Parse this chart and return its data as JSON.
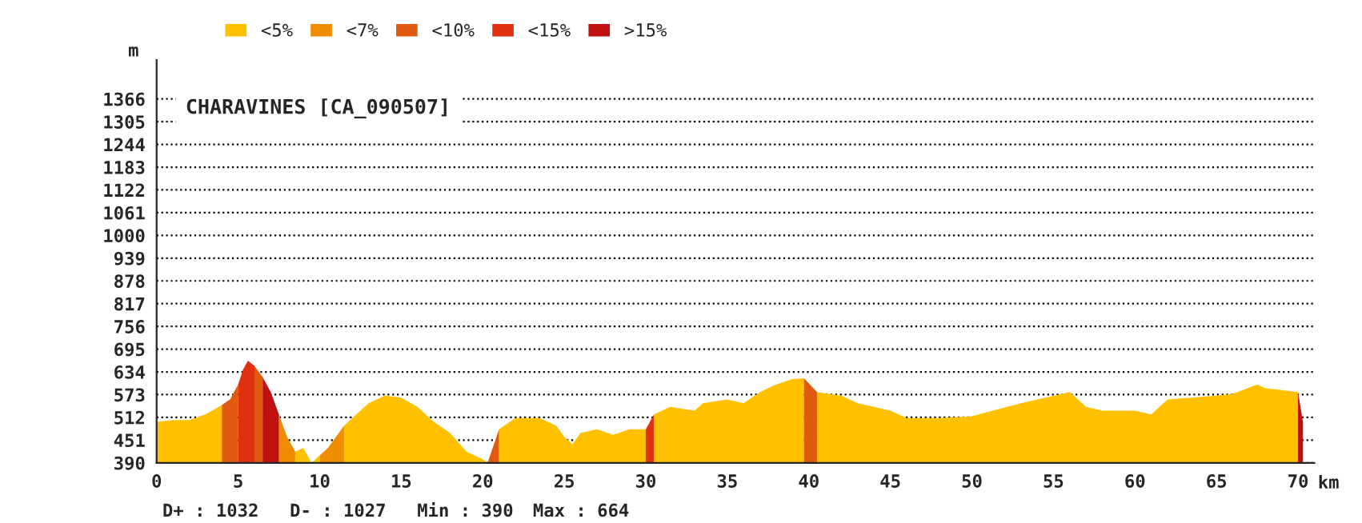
{
  "chart_data": {
    "type": "area",
    "title": "CHARAVINES [CA_090507]",
    "xlabel": "km",
    "ylabel": "m",
    "xlim": [
      0,
      71
    ],
    "ylim": [
      390,
      1470
    ],
    "xticks": [
      0,
      5,
      10,
      15,
      20,
      25,
      30,
      35,
      40,
      45,
      50,
      55,
      60,
      65,
      70
    ],
    "yticks": [
      390,
      451,
      512,
      573,
      634,
      695,
      756,
      817,
      878,
      939,
      1000,
      1061,
      1122,
      1183,
      1244,
      1305,
      1366
    ],
    "grid": "y",
    "line_style": "dotted",
    "legend": "top",
    "annotations": [
      "D+ : 1032",
      "D- : 1027",
      "Min : 390",
      "Max : 664"
    ],
    "series": [
      {
        "name": "<5%",
        "color": "#ffc000",
        "x": [
          0,
          1,
          2,
          3,
          4,
          6,
          8.5,
          9,
          9.5,
          10,
          11,
          11.5,
          12,
          13,
          14,
          15,
          16,
          17,
          18,
          19,
          20,
          20.3,
          20.6,
          21,
          22,
          23.5,
          24.5,
          25,
          25.5,
          26,
          27,
          28,
          29,
          30,
          30.2,
          30.5,
          31.5,
          33,
          33.5,
          35,
          36,
          37,
          38,
          39,
          39.7,
          40,
          40.5,
          42,
          43,
          45,
          46,
          48,
          50,
          53,
          56,
          57,
          58,
          60,
          61,
          62,
          65,
          66,
          67.5,
          68,
          69,
          70
        ],
        "values": [
          500,
          505,
          505,
          520,
          545,
          null,
          420,
          430,
          390,
          410,
          null,
          490,
          510,
          550,
          570,
          565,
          540,
          500,
          470,
          420,
          400,
          390,
          null,
          480,
          510,
          510,
          490,
          460,
          440,
          470,
          480,
          465,
          480,
          480,
          null,
          520,
          540,
          530,
          550,
          560,
          550,
          580,
          600,
          615,
          617,
          null,
          580,
          570,
          550,
          530,
          510,
          510,
          515,
          550,
          580,
          540,
          530,
          530,
          520,
          560,
          570,
          575,
          600,
          590,
          585,
          580
        ]
      },
      {
        "name": "<7%",
        "color": "#f08c00",
        "x": [
          7.5,
          8,
          8.5,
          9,
          10,
          10.5,
          11,
          11.5
        ],
        "values": [
          520,
          460,
          420,
          null,
          410,
          430,
          460,
          490
        ]
      },
      {
        "name": "<10%",
        "color": "#e05a10",
        "x": [
          4,
          4.5,
          5,
          5.6,
          6,
          6.5,
          10,
          20.3,
          21,
          30,
          39.7,
          40.5
        ],
        "values": [
          545,
          560,
          600,
          null,
          650,
          620,
          null,
          390,
          480,
          null,
          617,
          580
        ]
      },
      {
        "name": "<15%",
        "color": "#e03010",
        "x": [
          5,
          5.3,
          5.6,
          6,
          20,
          30,
          30.5
        ],
        "values": [
          600,
          640,
          664,
          650,
          null,
          480,
          520
        ]
      },
      {
        "name": ">15%",
        "color": "#c01010",
        "x": [
          6.5,
          7,
          7.5,
          40,
          70,
          70.3
        ],
        "values": [
          620,
          580,
          520,
          null,
          580,
          500
        ]
      }
    ]
  }
}
